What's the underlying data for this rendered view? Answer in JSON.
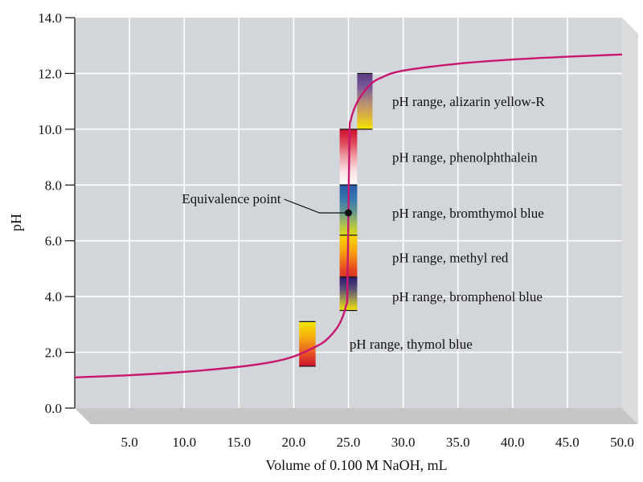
{
  "chart_data": {
    "type": "line",
    "title": "",
    "xlabel": "Volume of 0.100 M NaOH, mL",
    "ylabel": "pH",
    "xlim": [
      0,
      50
    ],
    "ylim": [
      0,
      14
    ],
    "grid": true,
    "x_ticks": [
      5,
      10,
      15,
      20,
      25,
      30,
      35,
      40,
      45,
      50
    ],
    "x_tick_labels": [
      "5.0",
      "10.0",
      "15.0",
      "20.0",
      "25.0",
      "30.0",
      "35.0",
      "40.0",
      "45.0",
      "50.0"
    ],
    "y_ticks": [
      0,
      2,
      4,
      6,
      8,
      10,
      12,
      14
    ],
    "y_tick_labels": [
      "0.0",
      "2.0",
      "4.0",
      "6.0",
      "8.0",
      "10.0",
      "12.0",
      "14.0"
    ],
    "series": [
      {
        "color": "#c8176e",
        "x": [
          0,
          5,
          10,
          15,
          18,
          20,
          22,
          23,
          24,
          24.5,
          24.8,
          24.9,
          25,
          25.1,
          25.2,
          25.5,
          26,
          27,
          28,
          30,
          35,
          40,
          45,
          50
        ],
        "y": [
          1.1,
          1.18,
          1.3,
          1.48,
          1.65,
          1.85,
          2.2,
          2.45,
          2.9,
          3.3,
          3.7,
          4.1,
          7.0,
          9.9,
          10.3,
          10.7,
          11.1,
          11.6,
          11.85,
          12.1,
          12.35,
          12.5,
          12.6,
          12.68
        ]
      }
    ],
    "equivalence_point": {
      "label": "Equivalence point",
      "x": 25,
      "y": 7.0
    },
    "indicator_ranges": [
      {
        "name": "pH range, alizarin yellow-R",
        "x_start": 25.8,
        "x_end": 27.2,
        "ph_low": 10.0,
        "ph_high": 12.0,
        "colors": [
          "#f4e600",
          "#d9b040",
          "#b08a78",
          "#7a5a98",
          "#5a3c80"
        ]
      },
      {
        "name": "pH range, phenolphthalein",
        "x_start": 24.2,
        "x_end": 25.8,
        "ph_low": 8.0,
        "ph_high": 10.0,
        "colors": [
          "#ffffff",
          "#fbdfe3",
          "#f0a0a8",
          "#e04b5a",
          "#cc1030"
        ]
      },
      {
        "name": "pH range, bromthymol blue",
        "x_start": 24.2,
        "x_end": 25.8,
        "ph_low": 6.0,
        "ph_high": 8.0,
        "colors": [
          "#f2e400",
          "#b8c840",
          "#6a9a8a",
          "#3878b0",
          "#2858a8"
        ]
      },
      {
        "name": "pH range, methyl red",
        "x_start": 24.2,
        "x_end": 25.8,
        "ph_low": 4.4,
        "ph_high": 6.2,
        "colors": [
          "#cc1030",
          "#e84c20",
          "#f6a010",
          "#f8d800"
        ]
      },
      {
        "name": "pH range, bromphenol blue",
        "x_start": 24.2,
        "x_end": 25.8,
        "ph_low": 3.5,
        "ph_high": 4.7,
        "colors": [
          "#f2e400",
          "#a09850",
          "#584a78",
          "#2a1a70"
        ]
      },
      {
        "name": "pH range, thymol blue",
        "x_start": 20.5,
        "x_end": 22.0,
        "ph_low": 1.5,
        "ph_high": 3.1,
        "colors": [
          "#cc1030",
          "#e86020",
          "#f6b010",
          "#f4e600"
        ]
      }
    ],
    "indicator_labels": [
      {
        "text": "pH range, alizarin yellow-R",
        "x": 29.0,
        "y": 11.0
      },
      {
        "text": "pH range, phenolphthalein",
        "x": 29.0,
        "y": 9.0
      },
      {
        "text": "pH range, bromthymol blue",
        "x": 29.0,
        "y": 7.0
      },
      {
        "text": "pH range, methyl red",
        "x": 29.0,
        "y": 5.4
      },
      {
        "text": "pH range, bromphenol blue",
        "x": 29.0,
        "y": 4.0
      },
      {
        "text": "pH range, thymol blue",
        "x": 25.1,
        "y": 2.3
      }
    ],
    "colors": {
      "plot_background": "#d2d5d9",
      "floor": "#c6c6c6",
      "grid": "#ffffff",
      "curve": "#c8176e"
    }
  }
}
